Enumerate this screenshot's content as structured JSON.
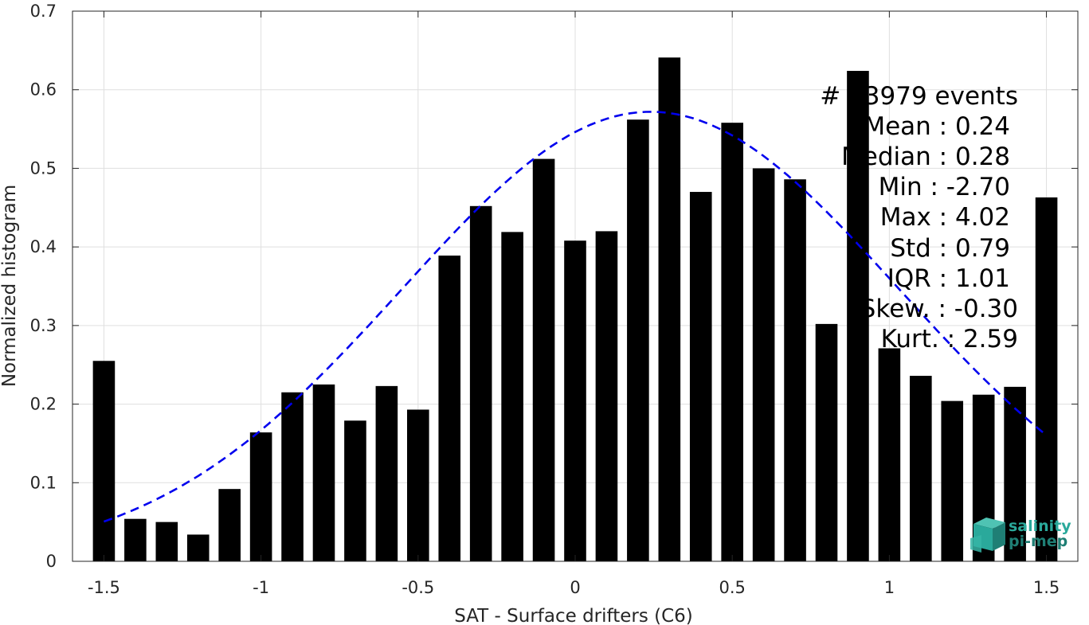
{
  "chart_data": {
    "type": "bar",
    "xlabel": "SAT - Surface drifters (C6)",
    "ylabel": "Normalized histogram",
    "xlim": [
      -1.6,
      1.6
    ],
    "ylim": [
      0,
      0.7
    ],
    "xticks": [
      {
        "value": -1.5,
        "label": "-1.5"
      },
      {
        "value": -1,
        "label": "-1"
      },
      {
        "value": -0.5,
        "label": "-0.5"
      },
      {
        "value": 0,
        "label": "0"
      },
      {
        "value": 0.5,
        "label": "0.5"
      },
      {
        "value": 1,
        "label": "1"
      },
      {
        "value": 1.5,
        "label": "1.5"
      }
    ],
    "yticks": [
      {
        "value": 0,
        "label": "0"
      },
      {
        "value": 0.1,
        "label": "0.1"
      },
      {
        "value": 0.2,
        "label": "0.2"
      },
      {
        "value": 0.3,
        "label": "0.3"
      },
      {
        "value": 0.4,
        "label": "0.4"
      },
      {
        "value": 0.5,
        "label": "0.5"
      },
      {
        "value": 0.6,
        "label": "0.6"
      },
      {
        "value": 0.7,
        "label": "0.7"
      }
    ],
    "grid": true,
    "bar_width": 0.07,
    "bar_color": "#000000",
    "bars": [
      {
        "x": -1.5,
        "y": 0.255
      },
      {
        "x": -1.4,
        "y": 0.054
      },
      {
        "x": -1.3,
        "y": 0.05
      },
      {
        "x": -1.2,
        "y": 0.034
      },
      {
        "x": -1.1,
        "y": 0.092
      },
      {
        "x": -1.0,
        "y": 0.164
      },
      {
        "x": -0.9,
        "y": 0.215
      },
      {
        "x": -0.8,
        "y": 0.225
      },
      {
        "x": -0.7,
        "y": 0.179
      },
      {
        "x": -0.6,
        "y": 0.223
      },
      {
        "x": -0.5,
        "y": 0.193
      },
      {
        "x": -0.4,
        "y": 0.389
      },
      {
        "x": -0.3,
        "y": 0.452
      },
      {
        "x": -0.2,
        "y": 0.419
      },
      {
        "x": -0.1,
        "y": 0.512
      },
      {
        "x": 0.0,
        "y": 0.408
      },
      {
        "x": 0.1,
        "y": 0.42
      },
      {
        "x": 0.2,
        "y": 0.562
      },
      {
        "x": 0.3,
        "y": 0.641
      },
      {
        "x": 0.4,
        "y": 0.47
      },
      {
        "x": 0.5,
        "y": 0.558
      },
      {
        "x": 0.6,
        "y": 0.5
      },
      {
        "x": 0.7,
        "y": 0.486
      },
      {
        "x": 0.8,
        "y": 0.302
      },
      {
        "x": 0.9,
        "y": 0.624
      },
      {
        "x": 1.0,
        "y": 0.271
      },
      {
        "x": 1.1,
        "y": 0.236
      },
      {
        "x": 1.2,
        "y": 0.204
      },
      {
        "x": 1.3,
        "y": 0.212
      },
      {
        "x": 1.4,
        "y": 0.222
      },
      {
        "x": 1.5,
        "y": 0.463
      }
    ],
    "fit_curve": {
      "style": "dashed",
      "color": "#0000ee",
      "mean": 0.24,
      "std": 0.79,
      "x_range": [
        -1.5,
        1.5
      ],
      "peak": 0.572
    }
  },
  "stats": {
    "count_line": "#   3979 events",
    "mean_line": "Mean : 0.24",
    "median_line": "Median : 0.28",
    "min_line": "Min : -2.70",
    "max_line": "Max : 4.02",
    "std_line": "Std : 0.79",
    "iqr_line": "IQR : 1.01",
    "skew_line": "Skew. : -0.30",
    "kurt_line": "Kurt. : 2.59"
  },
  "logo": {
    "line1": "salinity",
    "line2": "pi-mep",
    "color_primary": "#2aa99b",
    "color_dark": "#1f7f75"
  }
}
